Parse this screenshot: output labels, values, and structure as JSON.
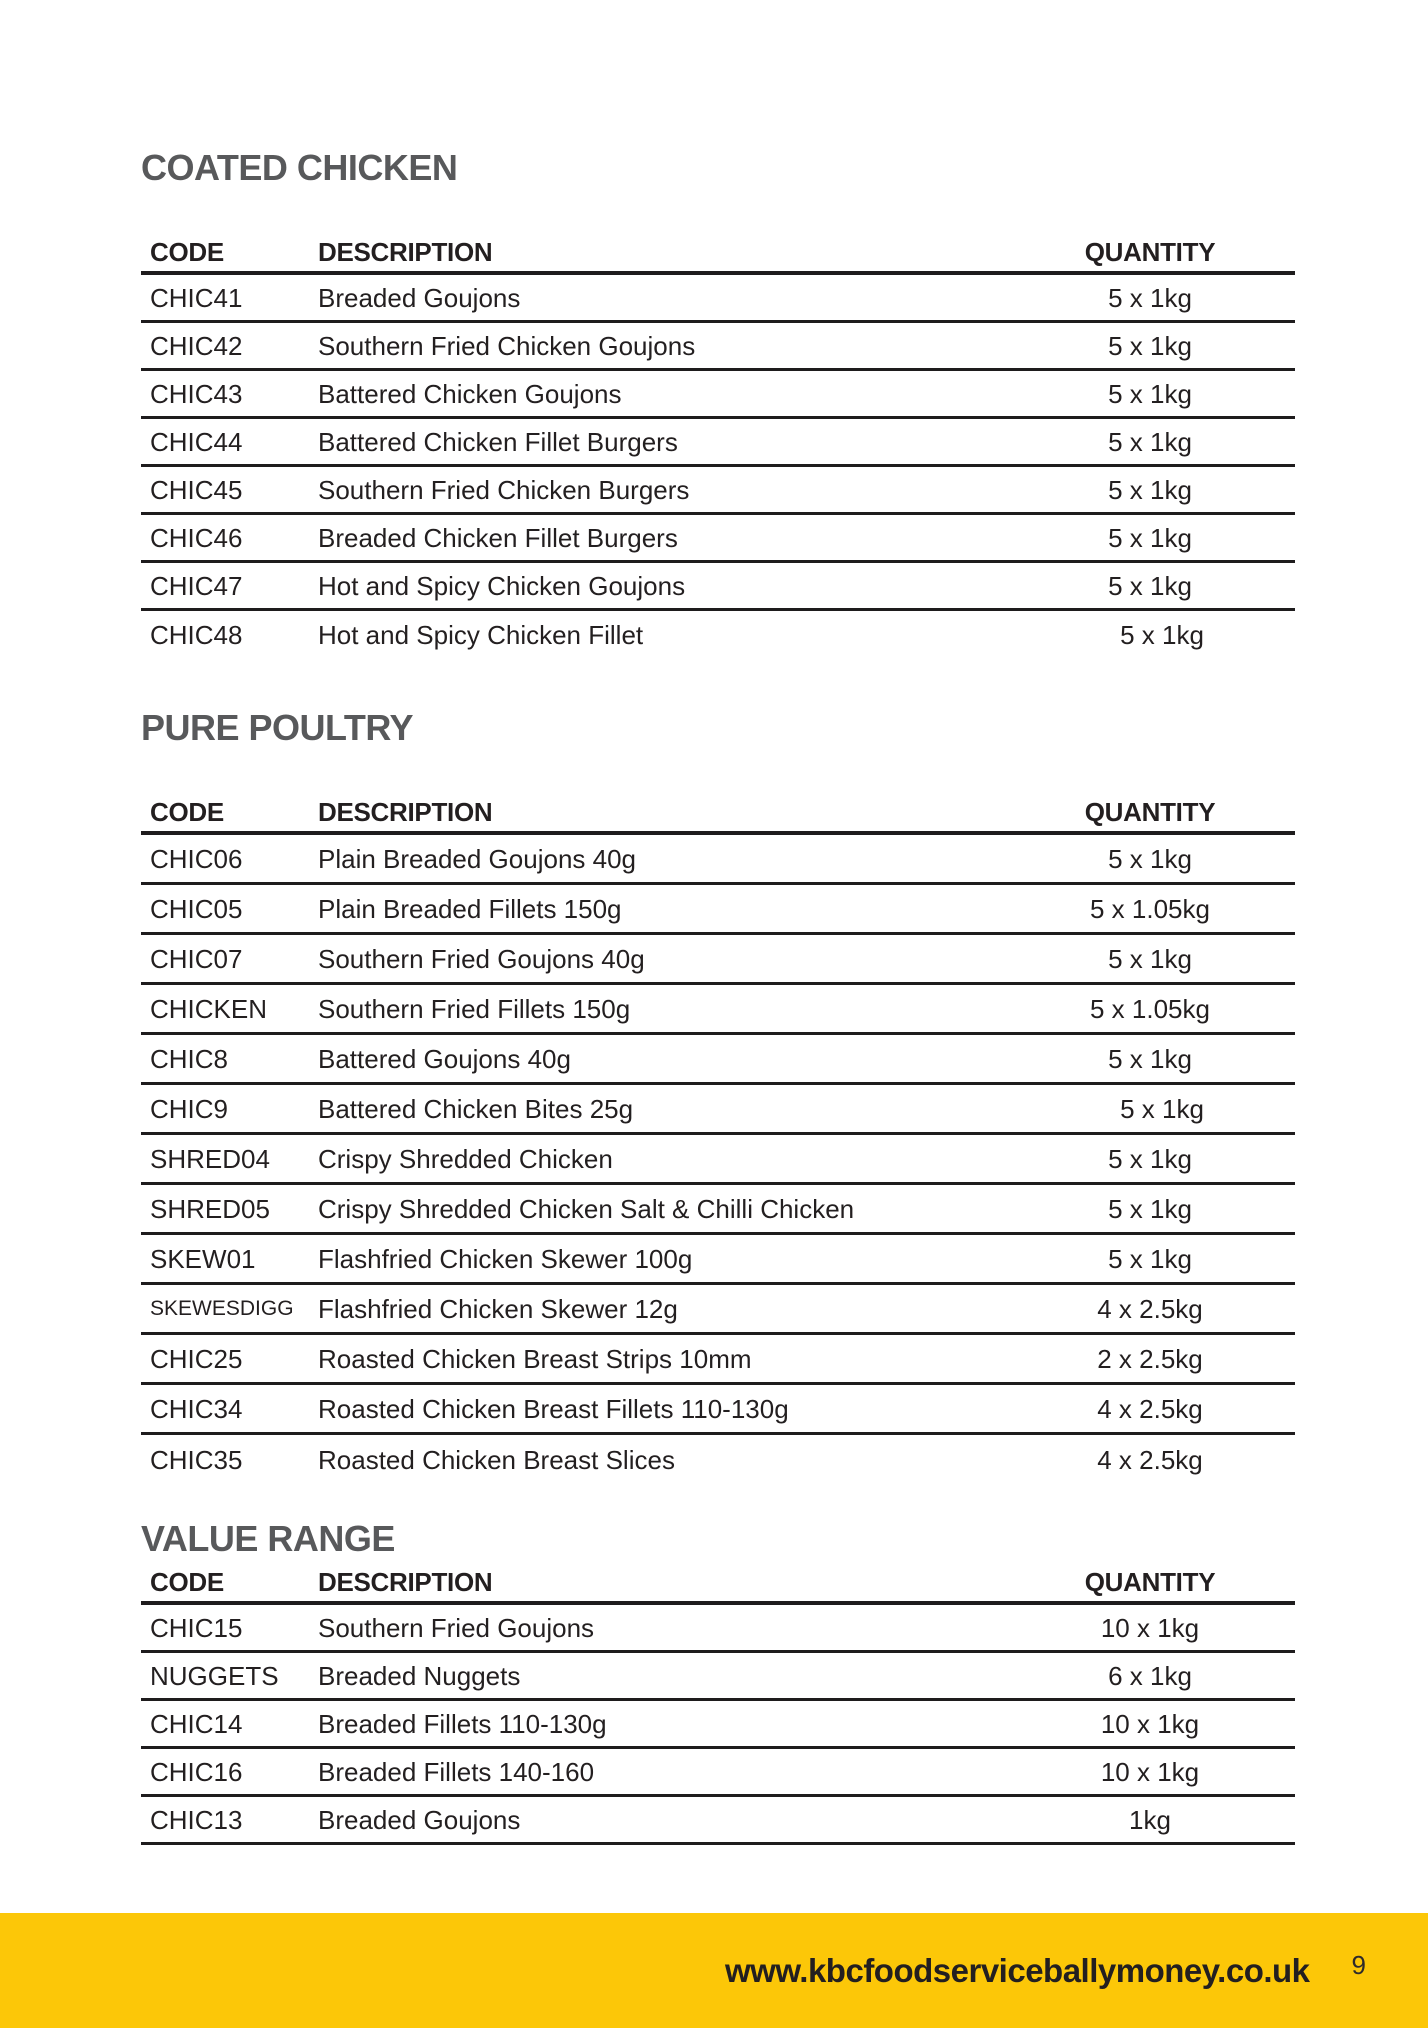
{
  "colors": {
    "accent_yellow": "#FCC708",
    "title_gray": "#58595B",
    "text": "#231F20",
    "line": "#1E1C1D"
  },
  "footer": {
    "url": "www.kbcfoodserviceballymoney.co.uk",
    "page_number": "9"
  },
  "sections": [
    {
      "title": "COATED CHICKEN",
      "headers": {
        "code": "CODE",
        "description": "DESCRIPTION",
        "quantity": "QUANTITY"
      },
      "rows": [
        {
          "code": "CHIC41",
          "description": "Breaded Goujons",
          "quantity": "5 x 1kg"
        },
        {
          "code": "CHIC42",
          "description": "Southern Fried Chicken Goujons",
          "quantity": "5 x 1kg"
        },
        {
          "code": "CHIC43",
          "description": "Battered Chicken Goujons",
          "quantity": "5 x 1kg"
        },
        {
          "code": "CHIC44",
          "description": "Battered Chicken Fillet Burgers",
          "quantity": "5 x 1kg"
        },
        {
          "code": "CHIC45",
          "description": "Southern Fried Chicken Burgers",
          "quantity": "5 x 1kg"
        },
        {
          "code": "CHIC46",
          "description": "Breaded Chicken Fillet Burgers",
          "quantity": "5 x 1kg"
        },
        {
          "code": "CHIC47",
          "description": "Hot and Spicy Chicken Goujons",
          "quantity": "5 x 1kg"
        },
        {
          "code": "CHIC48",
          "description": "Hot and Spicy Chicken Fillet",
          "quantity": "5 x 1kg"
        }
      ]
    },
    {
      "title": "PURE POULTRY",
      "headers": {
        "code": "CODE",
        "description": "DESCRIPTION",
        "quantity": "QUANTITY"
      },
      "rows": [
        {
          "code": "CHIC06",
          "description": "Plain Breaded Goujons 40g",
          "quantity": "5 x 1kg"
        },
        {
          "code": "CHIC05",
          "description": "Plain Breaded Fillets 150g",
          "quantity": "5 x 1.05kg"
        },
        {
          "code": "CHIC07",
          "description": "Southern Fried Goujons 40g",
          "quantity": "5 x 1kg"
        },
        {
          "code": "CHICKEN",
          "description": "Southern Fried Fillets 150g",
          "quantity": "5 x 1.05kg"
        },
        {
          "code": "CHIC8",
          "description": "Battered Goujons 40g",
          "quantity": "5 x 1kg"
        },
        {
          "code": "CHIC9",
          "description": "Battered Chicken Bites 25g",
          "quantity": "5 x 1kg"
        },
        {
          "code": "SHRED04",
          "description": "Crispy Shredded Chicken",
          "quantity": "5 x 1kg"
        },
        {
          "code": "SHRED05",
          "description": "Crispy Shredded Chicken Salt & Chilli Chicken",
          "quantity": "5 x 1kg"
        },
        {
          "code": "SKEW01",
          "description": "Flashfried Chicken Skewer 100g",
          "quantity": "5 x 1kg"
        },
        {
          "code": "SKEWESDIGG",
          "description": "Flashfried Chicken Skewer 12g",
          "quantity": "4 x 2.5kg"
        },
        {
          "code": "CHIC25",
          "description": "Roasted Chicken Breast Strips 10mm",
          "quantity": "2 x 2.5kg"
        },
        {
          "code": "CHIC34",
          "description": "Roasted Chicken Breast Fillets 110-130g",
          "quantity": "4 x 2.5kg"
        },
        {
          "code": "CHIC35",
          "description": "Roasted Chicken Breast Slices",
          "quantity": "4 x 2.5kg"
        }
      ]
    },
    {
      "title": "VALUE RANGE",
      "headers": {
        "code": "CODE",
        "description": "DESCRIPTION",
        "quantity": "QUANTITY"
      },
      "rows": [
        {
          "code": "CHIC15",
          "description": "Southern Fried Goujons",
          "quantity": "10 x 1kg"
        },
        {
          "code": "NUGGETS",
          "description": "Breaded Nuggets",
          "quantity": "6 x 1kg"
        },
        {
          "code": "CHIC14",
          "description": "Breaded Fillets 110-130g",
          "quantity": "10 x 1kg"
        },
        {
          "code": "CHIC16",
          "description": "Breaded Fillets 140-160",
          "quantity": "10 x 1kg"
        },
        {
          "code": "CHIC13",
          "description": "Breaded Goujons",
          "quantity": "1kg"
        }
      ]
    }
  ]
}
